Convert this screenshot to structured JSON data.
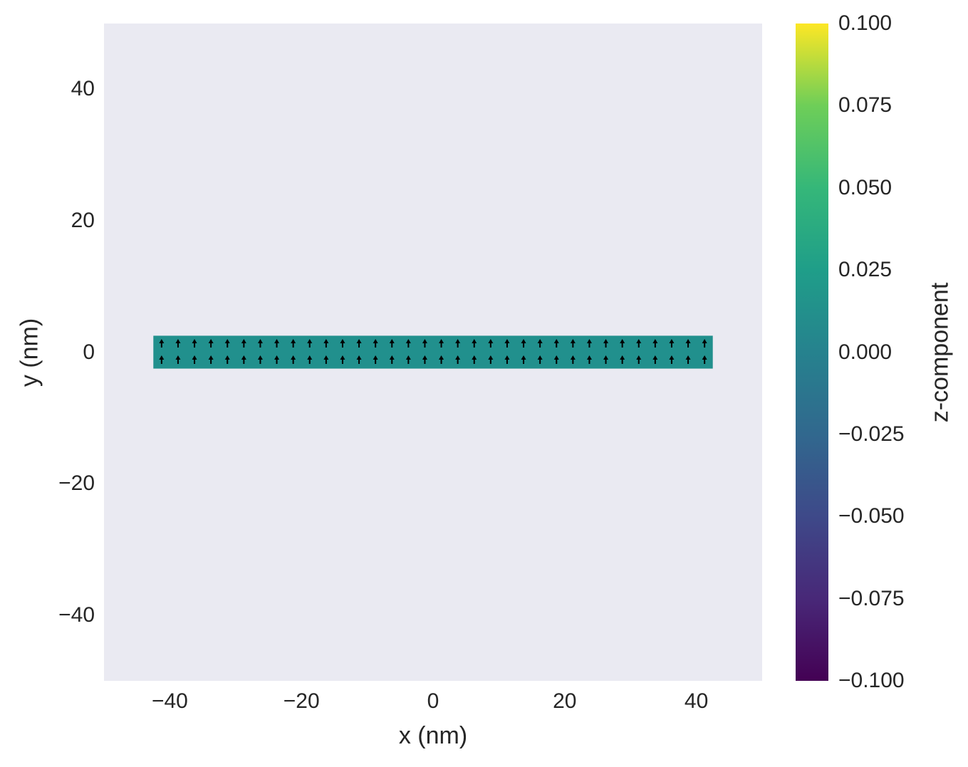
{
  "chart_data": {
    "type": "heatmap",
    "subtype": "quiver-on-colormap",
    "title": "",
    "xlabel": "x (nm)",
    "ylabel": "y (nm)",
    "xlim": [
      -50,
      50
    ],
    "ylim": [
      -50,
      50
    ],
    "x_ticks": [
      -40,
      -20,
      0,
      20,
      40
    ],
    "x_tick_labels": [
      "−40",
      "−20",
      "0",
      "20",
      "40"
    ],
    "y_ticks": [
      40,
      20,
      0,
      -20,
      -40
    ],
    "y_tick_labels": [
      "40",
      "20",
      "0",
      "−20",
      "−40"
    ],
    "grid": false,
    "background_color": "#eaeaf2",
    "region": {
      "x_range": [
        -42.5,
        42.5
      ],
      "y_range": [
        -2.5,
        2.5
      ],
      "cell_size_nm": 2.5,
      "columns": 34,
      "rows": 2,
      "z_value": 0.0,
      "fill_color": "#21908d"
    },
    "vectors": {
      "direction": "+y",
      "color": "#000000",
      "count": 68,
      "row_centers_y": [
        1.25,
        -1.25
      ],
      "column_centers_x_start": -41.25,
      "column_spacing": 2.5
    },
    "colorbar": {
      "label": "z-component",
      "colormap": "viridis",
      "range": [
        -0.1,
        0.1
      ],
      "ticks": [
        0.1,
        0.075,
        0.05,
        0.025,
        0.0,
        -0.025,
        -0.05,
        -0.075,
        -0.1
      ],
      "tick_labels": [
        "0.100",
        "0.075",
        "0.050",
        "0.025",
        "0.000",
        "−0.025",
        "−0.050",
        "−0.075",
        "−0.100"
      ]
    }
  }
}
